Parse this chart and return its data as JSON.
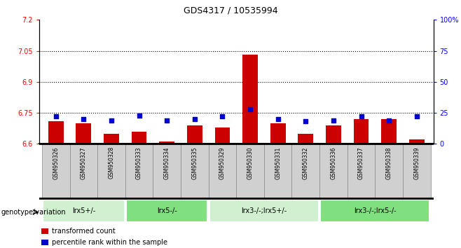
{
  "title": "GDS4317 / 10535994",
  "samples": [
    "GSM950326",
    "GSM950327",
    "GSM950328",
    "GSM950333",
    "GSM950334",
    "GSM950335",
    "GSM950329",
    "GSM950330",
    "GSM950331",
    "GSM950332",
    "GSM950336",
    "GSM950337",
    "GSM950338",
    "GSM950339"
  ],
  "red_values": [
    6.71,
    6.7,
    6.65,
    6.66,
    6.61,
    6.69,
    6.68,
    7.03,
    6.7,
    6.65,
    6.69,
    6.72,
    6.72,
    6.62
  ],
  "blue_values": [
    22,
    20,
    19,
    23,
    19,
    20,
    22,
    28,
    20,
    18,
    19,
    22,
    19,
    22
  ],
  "ylim_left": [
    6.6,
    7.2
  ],
  "ylim_right": [
    0,
    100
  ],
  "yticks_left": [
    6.6,
    6.75,
    6.9,
    7.05,
    7.2
  ],
  "yticks_right": [
    0,
    25,
    50,
    75,
    100
  ],
  "ytick_labels_left": [
    "6.6",
    "6.75",
    "6.9",
    "7.05",
    "7.2"
  ],
  "ytick_labels_right": [
    "0",
    "25",
    "50",
    "75",
    "100%"
  ],
  "hlines": [
    6.75,
    6.9,
    7.05
  ],
  "groups": [
    {
      "label": "lrx5+/-",
      "start": 0,
      "end": 3,
      "color": "#d0f0d0"
    },
    {
      "label": "lrx5-/-",
      "start": 3,
      "end": 6,
      "color": "#80e080"
    },
    {
      "label": "lrx3-/-;lrx5+/-",
      "start": 6,
      "end": 10,
      "color": "#d0f0d0"
    },
    {
      "label": "lrx3-/-;lrx5-/-",
      "start": 10,
      "end": 14,
      "color": "#80e080"
    }
  ],
  "genotype_label": "genotype/variation",
  "legend_red": "transformed count",
  "legend_blue": "percentile rank within the sample",
  "bar_color": "#cc0000",
  "dot_color": "#0000cc",
  "baseline": 6.6,
  "bar_width": 0.55
}
